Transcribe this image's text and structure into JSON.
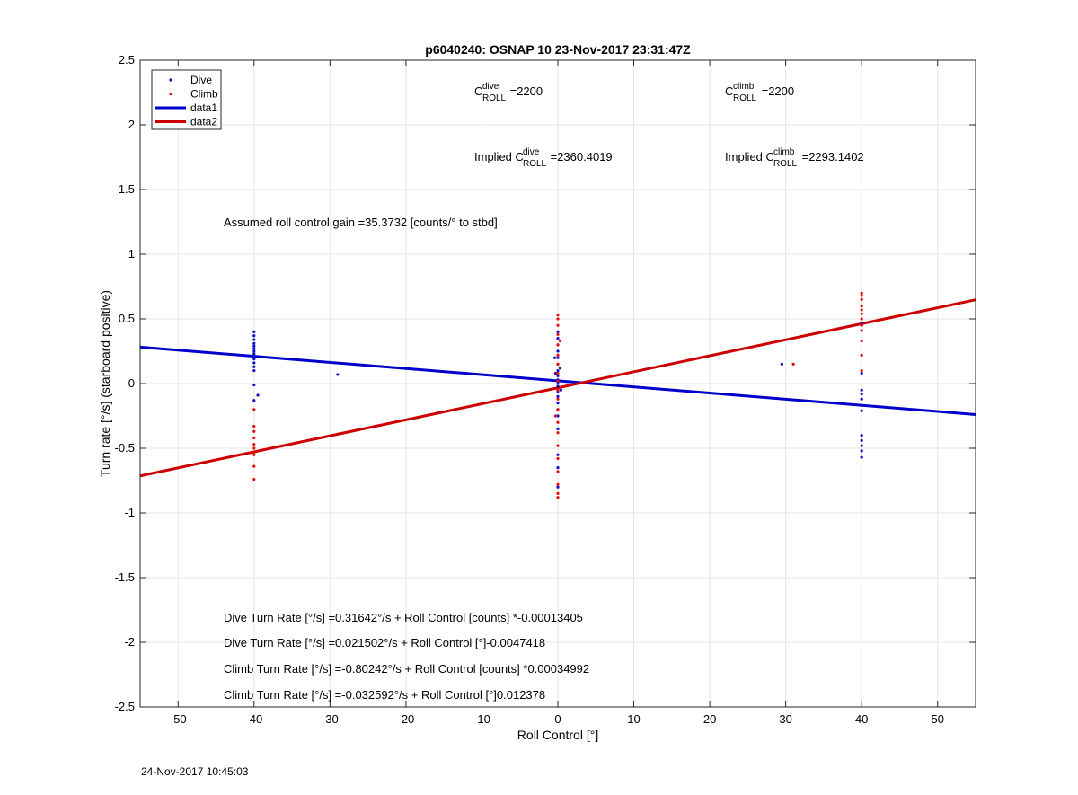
{
  "chart_data": {
    "type": "scatter",
    "title": "p6040240: OSNAP 10 23-Nov-2017 23:31:47Z",
    "xlabel": "Roll Control [°]",
    "ylabel": "Turn rate [°/s] (starboard positive)",
    "xlim": [
      -55,
      55
    ],
    "ylim": [
      -2.5,
      2.5
    ],
    "grid": true,
    "legend_position": "top-left",
    "x_ticks": [
      -50,
      -40,
      -30,
      -20,
      -10,
      0,
      10,
      20,
      30,
      40,
      50
    ],
    "x_tick_labels": [
      "-50",
      "-40",
      "-30",
      "-20",
      "-10",
      "0",
      "10",
      "20",
      "30",
      "40",
      "50"
    ],
    "y_ticks": [
      2.5,
      2,
      1.5,
      1,
      0.5,
      0,
      -0.5,
      -1,
      -1.5,
      -2,
      -2.5
    ],
    "y_tick_labels": [
      "2.5",
      "2",
      "1.5",
      "1",
      "0.5",
      "0",
      "-0.5",
      "-1",
      "-1.5",
      "-2",
      "-2.5"
    ],
    "series": [
      {
        "name": "Dive",
        "style": "points",
        "color": "#1010c8",
        "points": [
          [
            -40,
            0.4
          ],
          [
            -40,
            0.37
          ],
          [
            -40,
            0.34
          ],
          [
            -40,
            0.31
          ],
          [
            -40,
            0.29
          ],
          [
            -40,
            0.27
          ],
          [
            -40,
            0.25
          ],
          [
            -40,
            0.23
          ],
          [
            -40,
            0.21
          ],
          [
            -40,
            0.19
          ],
          [
            -40,
            0.16
          ],
          [
            -40,
            0.13
          ],
          [
            -40,
            0.1
          ],
          [
            -40,
            -0.01
          ],
          [
            -40,
            -0.13
          ],
          [
            -39.5,
            -0.09
          ],
          [
            -29,
            0.07
          ],
          [
            0,
            0.4
          ],
          [
            0,
            0.35
          ],
          [
            0,
            0.3
          ],
          [
            0,
            0.25
          ],
          [
            0,
            0.2
          ],
          [
            0,
            0.15
          ],
          [
            0,
            0.1
          ],
          [
            0,
            0.06
          ],
          [
            0,
            0.03
          ],
          [
            0,
            0.01
          ],
          [
            0,
            -0.02
          ],
          [
            0,
            -0.06
          ],
          [
            0,
            -0.1
          ],
          [
            0,
            -0.15
          ],
          [
            0,
            -0.2
          ],
          [
            0,
            -0.25
          ],
          [
            0,
            -0.35
          ],
          [
            0,
            -0.55
          ],
          [
            0,
            -0.65
          ],
          [
            0,
            -0.8
          ],
          [
            0.3,
            0.12
          ],
          [
            -0.3,
            0.08
          ],
          [
            0.4,
            -0.05
          ],
          [
            -0.4,
            0.2
          ],
          [
            29.5,
            0.15
          ],
          [
            40,
            0.46
          ],
          [
            40,
            0.08
          ],
          [
            40,
            -0.05
          ],
          [
            40,
            -0.08
          ],
          [
            40,
            -0.12
          ],
          [
            40,
            -0.17
          ],
          [
            40,
            -0.21
          ],
          [
            40,
            -0.4
          ],
          [
            40,
            -0.44
          ],
          [
            40,
            -0.48
          ],
          [
            40,
            -0.52
          ],
          [
            40,
            -0.57
          ]
        ]
      },
      {
        "name": "Climb",
        "style": "points",
        "color": "#e01010",
        "points": [
          [
            -40,
            -0.2
          ],
          [
            -40,
            -0.33
          ],
          [
            -40,
            -0.37
          ],
          [
            -40,
            -0.42
          ],
          [
            -40,
            -0.47
          ],
          [
            -40,
            -0.5
          ],
          [
            -40,
            -0.53
          ],
          [
            -40,
            -0.55
          ],
          [
            -40,
            -0.64
          ],
          [
            -40,
            -0.74
          ],
          [
            0,
            0.53
          ],
          [
            0,
            0.5
          ],
          [
            0,
            0.45
          ],
          [
            0,
            0.38
          ],
          [
            0,
            0.3
          ],
          [
            0,
            0.22
          ],
          [
            0,
            0.15
          ],
          [
            0,
            0.08
          ],
          [
            0,
            0.02
          ],
          [
            0,
            -0.05
          ],
          [
            0,
            -0.12
          ],
          [
            0,
            -0.2
          ],
          [
            0,
            -0.3
          ],
          [
            0,
            -0.38
          ],
          [
            0,
            -0.48
          ],
          [
            0,
            -0.58
          ],
          [
            0,
            -0.68
          ],
          [
            0,
            -0.78
          ],
          [
            0,
            -0.85
          ],
          [
            0,
            -0.88
          ],
          [
            0.3,
            0.33
          ],
          [
            -0.3,
            -0.25
          ],
          [
            31,
            0.15
          ],
          [
            40,
            0.7
          ],
          [
            40,
            0.68
          ],
          [
            40,
            0.65
          ],
          [
            40,
            0.6
          ],
          [
            40,
            0.57
          ],
          [
            40,
            0.54
          ],
          [
            40,
            0.5
          ],
          [
            40,
            0.45
          ],
          [
            40,
            0.41
          ],
          [
            40,
            0.33
          ],
          [
            40,
            0.22
          ],
          [
            40,
            0.1
          ]
        ]
      },
      {
        "name": "data1",
        "style": "line",
        "color": "#0000cc",
        "intercept": 0.021502,
        "slope": -0.0047418
      },
      {
        "name": "data2",
        "style": "line",
        "color": "#cc0000",
        "intercept": -0.032592,
        "slope": 0.012378
      }
    ],
    "annotations": {
      "c_roll_dive": {
        "c": "C",
        "sup": "dive",
        "sub": "ROLL",
        "value": " =2200"
      },
      "c_roll_climb": {
        "c": "C",
        "sup": "climb",
        "sub": "ROLL",
        "value": " =2200"
      },
      "implied_dive": {
        "prefix": "Implied C",
        "sup": "dive",
        "sub": "ROLL",
        "value": " =2360.4019"
      },
      "implied_climb": {
        "prefix": "Implied C",
        "sup": "climb",
        "sub": "ROLL",
        "value": " =2293.1402"
      },
      "gain": "Assumed roll control gain =35.3732 [counts/° to stbd]",
      "eq_dive_counts": "Dive Turn Rate [°/s] =0.31642°/s + Roll Control [counts] *-0.00013405",
      "eq_dive_deg": "Dive Turn Rate [°/s] =0.021502°/s + Roll Control [°]-0.0047418",
      "eq_climb_counts": "Climb Turn Rate [°/s] =-0.80242°/s + Roll Control [counts] *0.00034992",
      "eq_climb_deg": "Climb Turn Rate [°/s] =-0.032592°/s + Roll Control [°]0.012378"
    }
  },
  "footer": {
    "timestamp": "24-Nov-2017 10:45:03"
  }
}
